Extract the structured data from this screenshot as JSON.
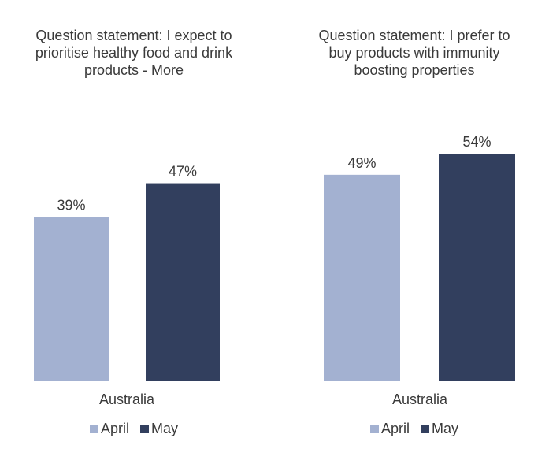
{
  "chart_data": [
    {
      "type": "bar",
      "title": "Question statement: I expect to\nprioritise healthy food and drink\nproducts - More",
      "categories": [
        "Australia"
      ],
      "series": [
        {
          "name": "April",
          "values": [
            39
          ],
          "labels": [
            "39%"
          ]
        },
        {
          "name": "May",
          "values": [
            47
          ],
          "labels": [
            "47%"
          ]
        }
      ],
      "ylim": [
        0,
        100
      ],
      "grid": false,
      "legend": "bottom"
    },
    {
      "type": "bar",
      "title": "Question statement: I prefer to\nbuy products with immunity\nboosting properties",
      "categories": [
        "Australia"
      ],
      "series": [
        {
          "name": "April",
          "values": [
            49
          ],
          "labels": [
            "49%"
          ]
        },
        {
          "name": "May",
          "values": [
            54
          ],
          "labels": [
            "54%"
          ]
        }
      ],
      "ylim": [
        0,
        100
      ],
      "grid": false,
      "legend": "bottom"
    }
  ],
  "colors": {
    "April": "#a3b1d1",
    "May": "#323f5e"
  }
}
